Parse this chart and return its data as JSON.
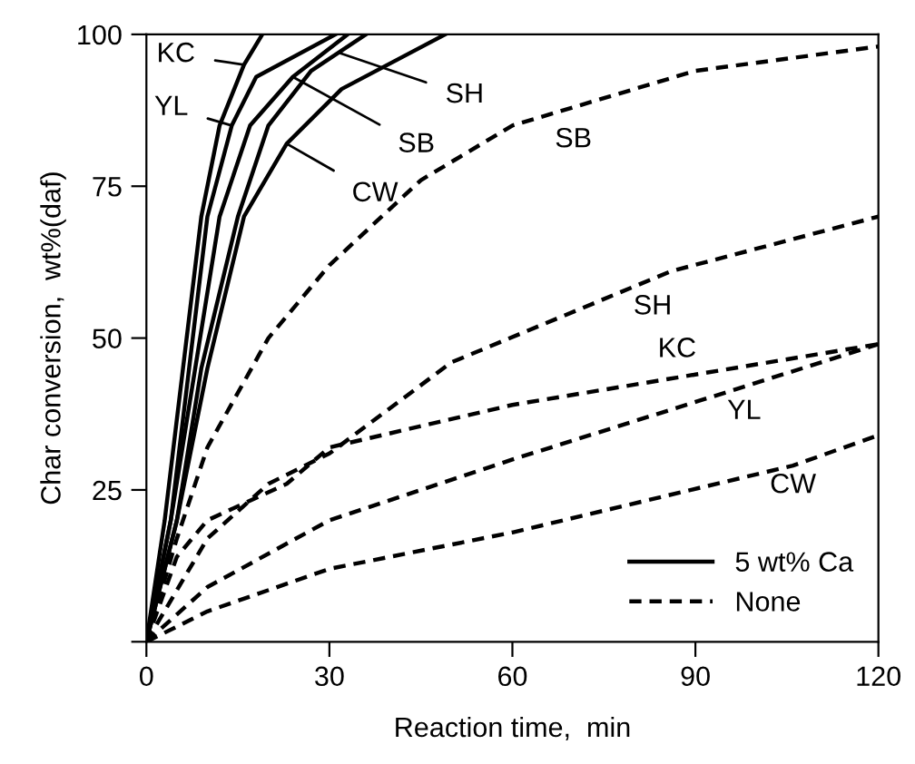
{
  "chart_data": {
    "type": "line",
    "xlabel": "Reaction time,  min",
    "ylabel": "Char conversion,  wt%(daf)",
    "xlim": [
      0,
      120
    ],
    "ylim": [
      0,
      100
    ],
    "xticks": [
      0,
      30,
      60,
      90,
      120
    ],
    "yticks": [
      {
        "value": 0,
        "label": null
      },
      25,
      50,
      75,
      100
    ],
    "grid": false,
    "legend": "bottom right",
    "marker": "none",
    "series": [
      {
        "name": "5 wt% Ca",
        "color": "#000000",
        "line_style": "solid",
        "x": [
          0,
          3,
          6,
          9,
          12,
          16,
          19
        ],
        "values": [
          0,
          20,
          45,
          70,
          85,
          95,
          100
        ]
      },
      {
        "color": "#000000",
        "line_style": "solid",
        "x": [
          0,
          4,
          7,
          10,
          14,
          18,
          31
        ],
        "values": [
          0,
          20,
          45,
          70,
          85,
          93,
          100
        ]
      },
      {
        "color": "#000000",
        "line_style": "solid",
        "x": [
          0,
          4,
          8,
          12,
          17,
          24,
          33
        ],
        "values": [
          0,
          20,
          45,
          70,
          85,
          93,
          100
        ]
      },
      {
        "color": "#000000",
        "line_style": "solid",
        "x": [
          0,
          5,
          9,
          15,
          20,
          27,
          36
        ],
        "values": [
          0,
          20,
          45,
          70,
          85,
          94,
          100
        ]
      },
      {
        "color": "#000000",
        "line_style": "solid",
        "x": [
          0,
          5,
          10,
          16,
          23,
          32,
          49
        ],
        "values": [
          0,
          20,
          45,
          70,
          82,
          91,
          100
        ]
      },
      {
        "name": "None",
        "color": "#000000",
        "line_style": "dashed",
        "x": [
          0,
          5,
          10,
          23,
          30,
          60,
          90,
          120
        ],
        "values": [
          0,
          14,
          20,
          26,
          32,
          39,
          44,
          49
        ]
      },
      {
        "color": "#000000",
        "line_style": "dashed",
        "x": [
          0,
          10,
          30,
          60,
          98,
          120
        ],
        "values": [
          0,
          9,
          20,
          30,
          42,
          49
        ]
      },
      {
        "color": "#000000",
        "line_style": "dashed",
        "x": [
          0,
          5,
          10,
          20,
          30,
          45,
          60,
          90,
          120
        ],
        "values": [
          0,
          17,
          32,
          50,
          62,
          76,
          85,
          94,
          98
        ]
      },
      {
        "color": "#000000",
        "line_style": "dashed",
        "x": [
          0,
          10,
          20,
          30,
          50,
          86,
          120
        ],
        "values": [
          0,
          17,
          26,
          31,
          46,
          61,
          70
        ]
      },
      {
        "color": "#000000",
        "line_style": "dashed",
        "x": [
          0,
          10,
          30,
          60,
          106,
          120
        ],
        "values": [
          0,
          5,
          12,
          18,
          29,
          34
        ]
      }
    ],
    "annotations": [
      {
        "text": "KC",
        "x": 16,
        "y": 95
      },
      {
        "text": "YL",
        "x": 14,
        "y": 85
      },
      {
        "text": "SH",
        "x": 31.5,
        "y": 97
      },
      {
        "text": "SB",
        "x": 24,
        "y": 93
      },
      {
        "text": "CW",
        "x": 23,
        "y": 82
      },
      {
        "text": "SB",
        "x": 70,
        "y": 88
      },
      {
        "text": "SH",
        "x": 83,
        "y": 58
      },
      {
        "text": "KC",
        "x": 87,
        "y": 43.5
      },
      {
        "text": "YL",
        "x": 98,
        "y": 42
      },
      {
        "text": "CW",
        "x": 106,
        "y": 29
      }
    ]
  }
}
